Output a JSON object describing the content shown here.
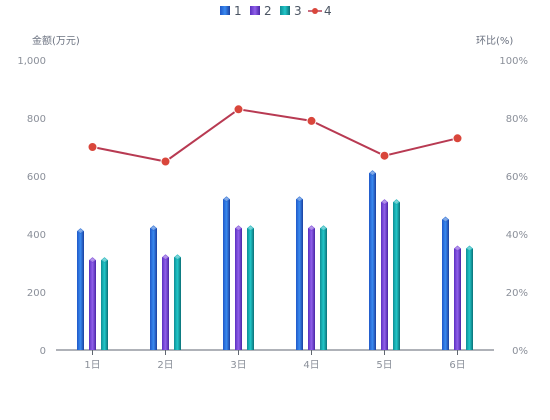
{
  "chart_data": {
    "type": "bar",
    "categories": [
      "1日",
      "2日",
      "3日",
      "4日",
      "5日",
      "6日"
    ],
    "series": [
      {
        "name": "1",
        "values": [
          410,
          420,
          520,
          520,
          610,
          450
        ],
        "color": "#2b6fd6"
      },
      {
        "name": "2",
        "values": [
          310,
          320,
          420,
          420,
          510,
          350
        ],
        "color": "#7a45d8"
      },
      {
        "name": "3",
        "values": [
          310,
          320,
          420,
          420,
          510,
          350
        ],
        "color": "#18b3b8"
      }
    ],
    "line_series": {
      "name": "4",
      "values": [
        70,
        65,
        83,
        79,
        67,
        73
      ],
      "color": "#b83a52",
      "point_color": "#d9463b"
    },
    "yleft": {
      "label": "金额(万元)",
      "ylim": [
        0,
        1000
      ],
      "ticks": [
        "0",
        "200",
        "400",
        "600",
        "800",
        "1,000"
      ]
    },
    "yright": {
      "label": "环比(%)",
      "ylim": [
        0,
        100
      ],
      "ticks": [
        "0%",
        "20%",
        "40%",
        "60%",
        "80%",
        "100%"
      ]
    },
    "legend_position": "top-center",
    "grid": false
  }
}
